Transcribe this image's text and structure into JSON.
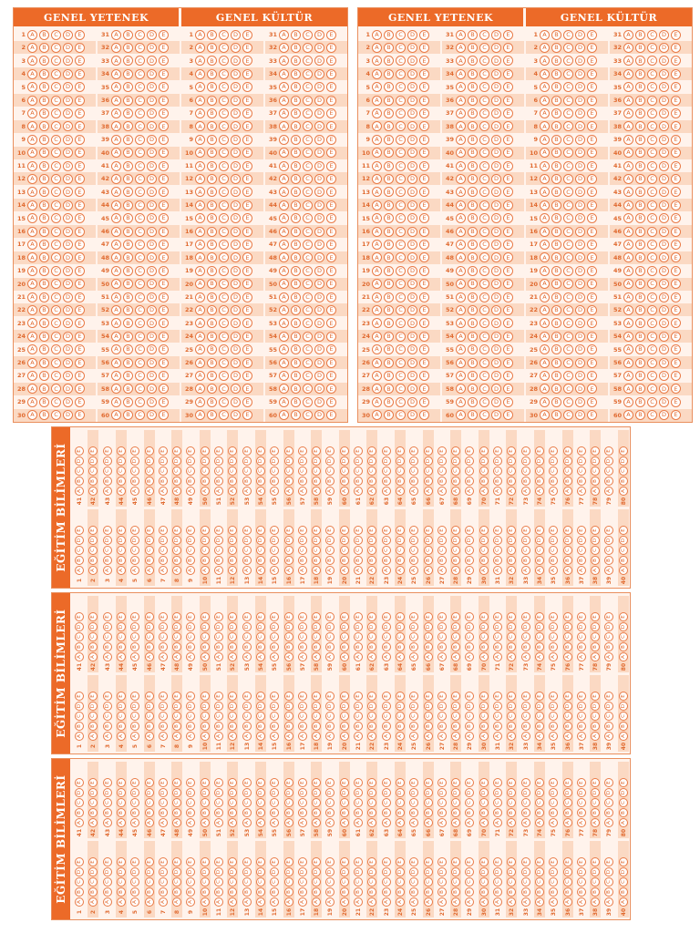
{
  "colors": {
    "accent": "#ec6a28",
    "bubble": "#e97a46",
    "stripe": "#fbd9c3",
    "paper": "#fff3ec"
  },
  "options": [
    "A",
    "B",
    "C",
    "D",
    "E"
  ],
  "top_sheets": [
    {
      "left_title": "GENEL YETENEK",
      "right_title": "GENEL KÜLTÜR",
      "left_start": 1,
      "right_start": 31,
      "rows": 30
    },
    {
      "left_title": "GENEL YETENEK",
      "right_title": "GENEL KÜLTÜR",
      "left_start": 1,
      "right_start": 31,
      "rows": 30
    }
  ],
  "egitim_strips": [
    {
      "title": "EĞİTİM BİLİMLERİ",
      "row_a_start": 1,
      "row_b_start": 41,
      "count": 40
    },
    {
      "title": "EĞİTİM BİLİMLERİ",
      "row_a_start": 1,
      "row_b_start": 41,
      "count": 40
    },
    {
      "title": "EĞİTİM BİLİMLERİ",
      "row_a_start": 1,
      "row_b_start": 41,
      "count": 40
    }
  ]
}
